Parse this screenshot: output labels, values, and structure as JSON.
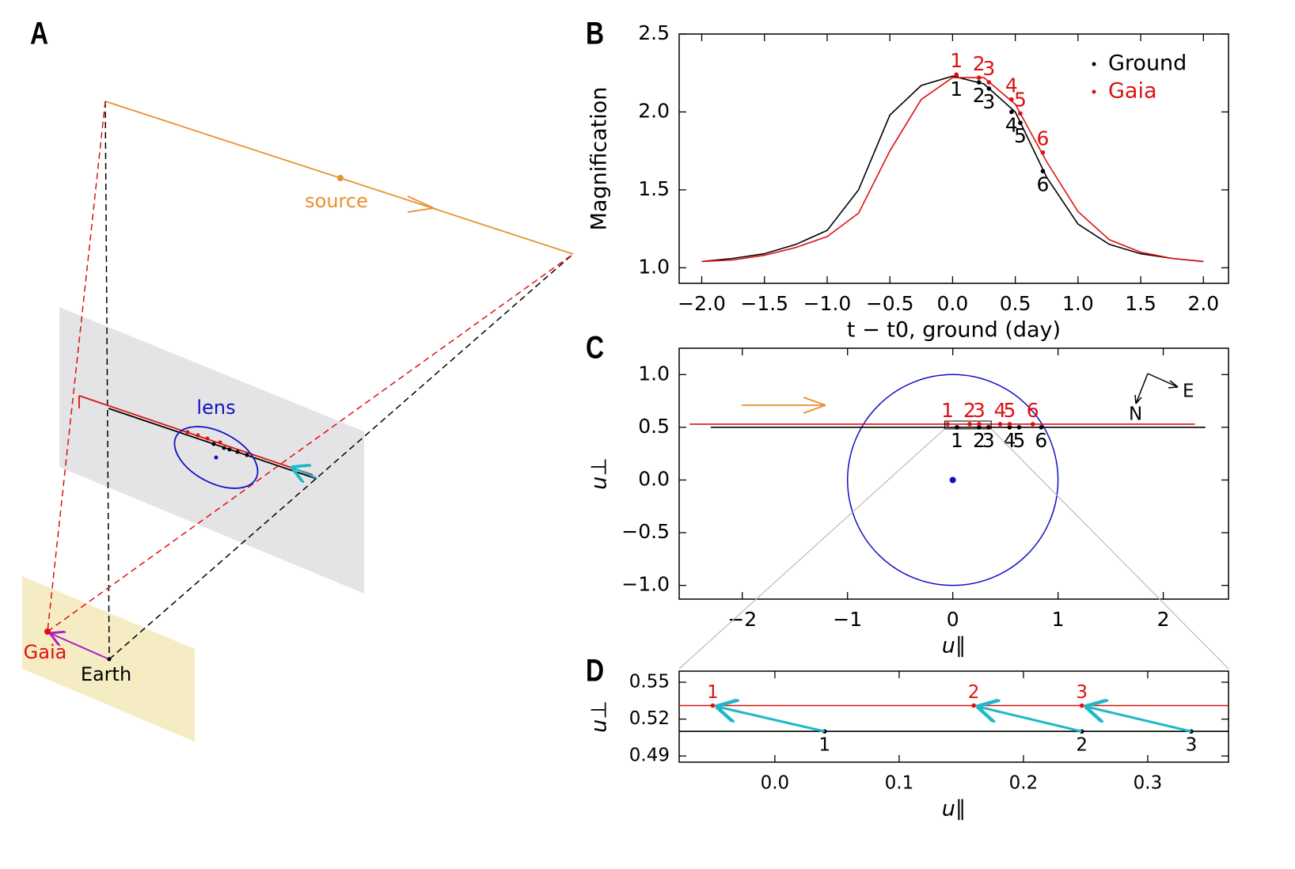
{
  "panel_a": {
    "label": "A",
    "source": "source",
    "lens": "lens",
    "gaia": "Gaia",
    "earth": "Earth"
  },
  "chart_data": [
    {
      "type": "line",
      "panel": "B",
      "ylabel": "Magnification",
      "xlabel": "t − t0, ground (day)",
      "xlim": [
        -2.18,
        2.2
      ],
      "ylim": [
        0.9,
        2.5
      ],
      "xticks": [
        {
          "value": -2,
          "label": "−2.0"
        },
        {
          "value": -1.5,
          "label": "−1.5"
        },
        {
          "value": -1,
          "label": "−1.0"
        },
        {
          "value": -0.5,
          "label": "−0.5"
        },
        {
          "value": 0,
          "label": "0.0"
        },
        0.5,
        {
          "value": 1,
          "label": "1.0"
        },
        1.5,
        {
          "value": 2,
          "label": "2.0"
        }
      ],
      "yticks": [
        {
          "value": 1,
          "label": "1.0"
        },
        1.5,
        {
          "value": 2,
          "label": "2.0"
        },
        2.5
      ],
      "legend": "upper right",
      "series": [
        {
          "name": "Ground",
          "color": "#000000",
          "x": [
            -2,
            -1.75,
            -1.5,
            -1.25,
            -1,
            -0.75,
            -0.5,
            -0.25,
            0,
            0.25,
            0.5,
            0.75,
            1,
            1.25,
            1.5,
            1.75,
            2
          ],
          "values": [
            1.04,
            1.06,
            1.09,
            1.15,
            1.24,
            1.5,
            1.98,
            2.17,
            2.23,
            2.18,
            2.0,
            1.58,
            1.28,
            1.15,
            1.09,
            1.06,
            1.04
          ],
          "points": {
            "x": [
              0.03,
              0.21,
              0.29,
              0.47,
              0.54,
              0.72
            ],
            "values": [
              2.23,
              2.19,
              2.15,
              2.0,
              1.93,
              1.62
            ],
            "labels": [
              "1",
              "2",
              "3",
              "4",
              "5",
              "6"
            ]
          }
        },
        {
          "name": "Gaia",
          "color": "#dd1111",
          "x": [
            -2,
            -1.75,
            -1.5,
            -1.25,
            -1,
            -0.75,
            -0.5,
            -0.25,
            0,
            0.25,
            0.5,
            0.75,
            1,
            1.25,
            1.5,
            1.75,
            2
          ],
          "values": [
            1.04,
            1.05,
            1.08,
            1.13,
            1.2,
            1.35,
            1.75,
            2.08,
            2.22,
            2.22,
            2.05,
            1.68,
            1.36,
            1.18,
            1.1,
            1.06,
            1.04
          ],
          "points": {
            "x": [
              0.03,
              0.21,
              0.29,
              0.47,
              0.54,
              0.72
            ],
            "values": [
              2.24,
              2.22,
              2.19,
              2.08,
              1.99,
              1.74
            ],
            "labels": [
              "1",
              "2",
              "3",
              "4",
              "5",
              "6"
            ]
          }
        }
      ]
    },
    {
      "type": "trajectory",
      "panel": "C",
      "ylabel": "u⊥",
      "xlabel": "u∥",
      "xlim": [
        -2.6,
        2.62
      ],
      "ylim": [
        -1.13,
        1.25
      ],
      "xticks": [
        {
          "value": -2,
          "label": "−2"
        },
        {
          "value": -1,
          "label": "−1"
        },
        0,
        1,
        2
      ],
      "yticks": [
        {
          "value": 1,
          "label": "1.0"
        },
        0.5,
        {
          "value": 0,
          "label": "0.0"
        },
        {
          "value": -0.5,
          "label": "−0.5"
        },
        {
          "value": -1,
          "label": "−1.0"
        }
      ],
      "lens": {
        "x": 0,
        "y": 0,
        "radius": 1,
        "color": "#1010c0"
      },
      "compass_labels": [
        "N",
        "E"
      ],
      "series": [
        {
          "color": "#000000",
          "x": [
            -2.3,
            2.4
          ],
          "values": [
            0.5,
            0.5
          ],
          "points": {
            "x": [
              0.04,
              0.25,
              0.34,
              0.54,
              0.63,
              0.84
            ],
            "values": [
              0.5,
              0.5,
              0.5,
              0.5,
              0.5,
              0.5
            ],
            "labels": [
              "1",
              "2",
              "3",
              "4",
              "5",
              "6"
            ]
          }
        },
        {
          "color": "#dd1111",
          "x": [
            -2.5,
            2.3
          ],
          "values": [
            0.53,
            0.53
          ],
          "points": {
            "x": [
              -0.05,
              0.16,
              0.25,
              0.45,
              0.54,
              0.76
            ],
            "values": [
              0.53,
              0.53,
              0.53,
              0.53,
              0.53,
              0.53
            ],
            "labels": [
              "1",
              "2",
              "3",
              "4",
              "5",
              "6"
            ]
          }
        }
      ]
    },
    {
      "type": "trajectory",
      "panel": "D",
      "ylabel": "u⊥",
      "xlabel": "u∥",
      "xlim": [
        -0.077,
        0.365
      ],
      "ylim": [
        0.485,
        0.559
      ],
      "xticks": [
        {
          "value": 0,
          "label": "0.0"
        },
        0.1,
        0.2,
        0.3
      ],
      "yticks": [
        0.49,
        0.52,
        0.55
      ],
      "series": [
        {
          "color": "#000000",
          "x": [
            -0.077,
            0.365
          ],
          "values": [
            0.51,
            0.51
          ],
          "points": {
            "x": [
              0.04,
              0.247,
              0.335
            ],
            "values": [
              0.51,
              0.51,
              0.51
            ],
            "labels": [
              "1",
              "2",
              "3"
            ]
          }
        },
        {
          "color": "#dd1111",
          "x": [
            -0.077,
            0.365
          ],
          "values": [
            0.531,
            0.531
          ],
          "points": {
            "x": [
              -0.05,
              0.16,
              0.247
            ],
            "values": [
              0.531,
              0.531,
              0.531
            ],
            "labels": [
              "1",
              "2",
              "3"
            ]
          }
        }
      ]
    }
  ]
}
